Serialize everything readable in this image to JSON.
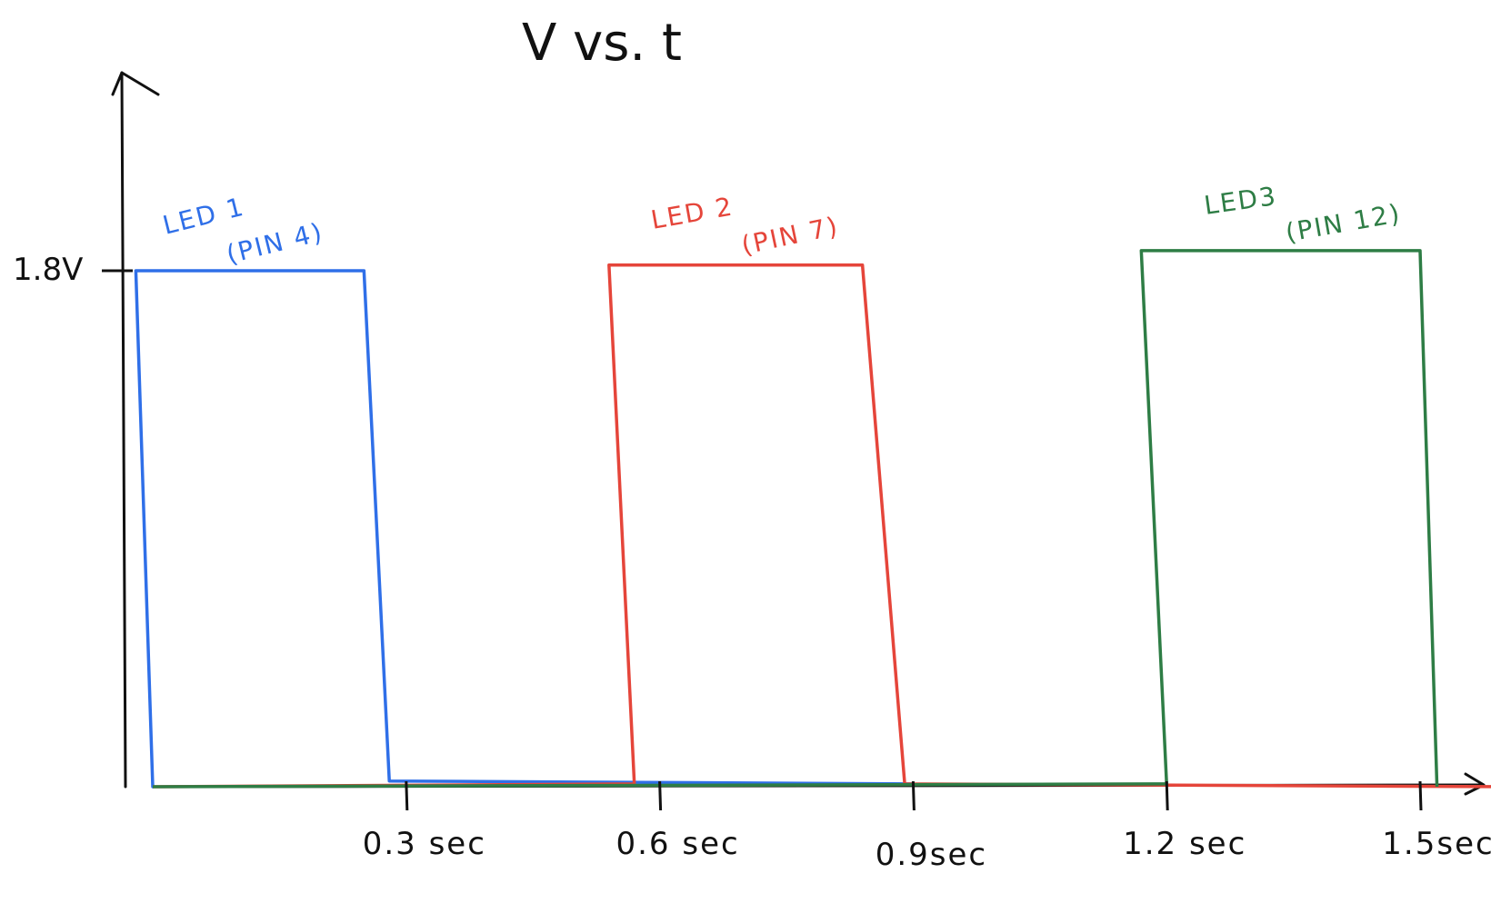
{
  "chart_data": {
    "type": "line",
    "title": "V vs. t",
    "xlabel": "",
    "ylabel": "",
    "x_ticks": [
      "0.3 sec",
      "0.6 sec",
      "0.9sec",
      "1.2 sec",
      "1.5sec"
    ],
    "x_tick_values": [
      0.3,
      0.6,
      0.9,
      1.2,
      1.5
    ],
    "y_ticks": [
      "1.8V"
    ],
    "y_tick_values": [
      1.8
    ],
    "xlim": [
      0,
      1.6
    ],
    "ylim": [
      0,
      2.7
    ],
    "grid": false,
    "legend": "none",
    "series": [
      {
        "name": "LED 1",
        "annotation_line1": "LED 1",
        "annotation_line2": "(PIN 4)",
        "color": "#2f6fe8",
        "x": [
          0,
          0,
          0.25,
          0.3,
          1.5
        ],
        "y": [
          1.8,
          0,
          0,
          0,
          0
        ],
        "points": [
          [
            -0.02,
            1.8
          ],
          [
            0.0,
            0.0
          ],
          [
            -0.02,
            1.8
          ],
          [
            0.25,
            1.8
          ],
          [
            0.28,
            0.02
          ],
          [
            0.9,
            0.01
          ]
        ]
      },
      {
        "name": "LED 2",
        "annotation_line1": "LED 2",
        "annotation_line2": "(PIN 7)",
        "color": "#e5453a",
        "points": [
          [
            0.0,
            0.0
          ],
          [
            0.57,
            0.01
          ],
          [
            0.54,
            1.82
          ],
          [
            0.84,
            1.82
          ],
          [
            0.89,
            0.01
          ],
          [
            1.6,
            0.0
          ]
        ]
      },
      {
        "name": "LED 3",
        "annotation_line1": "LED3",
        "annotation_line2": "(PIN 12)",
        "color": "#2e7d45",
        "points": [
          [
            0.0,
            0.0
          ],
          [
            1.2,
            0.01
          ],
          [
            1.17,
            1.87
          ],
          [
            1.5,
            1.87
          ],
          [
            1.52,
            0.0
          ]
        ]
      }
    ]
  }
}
